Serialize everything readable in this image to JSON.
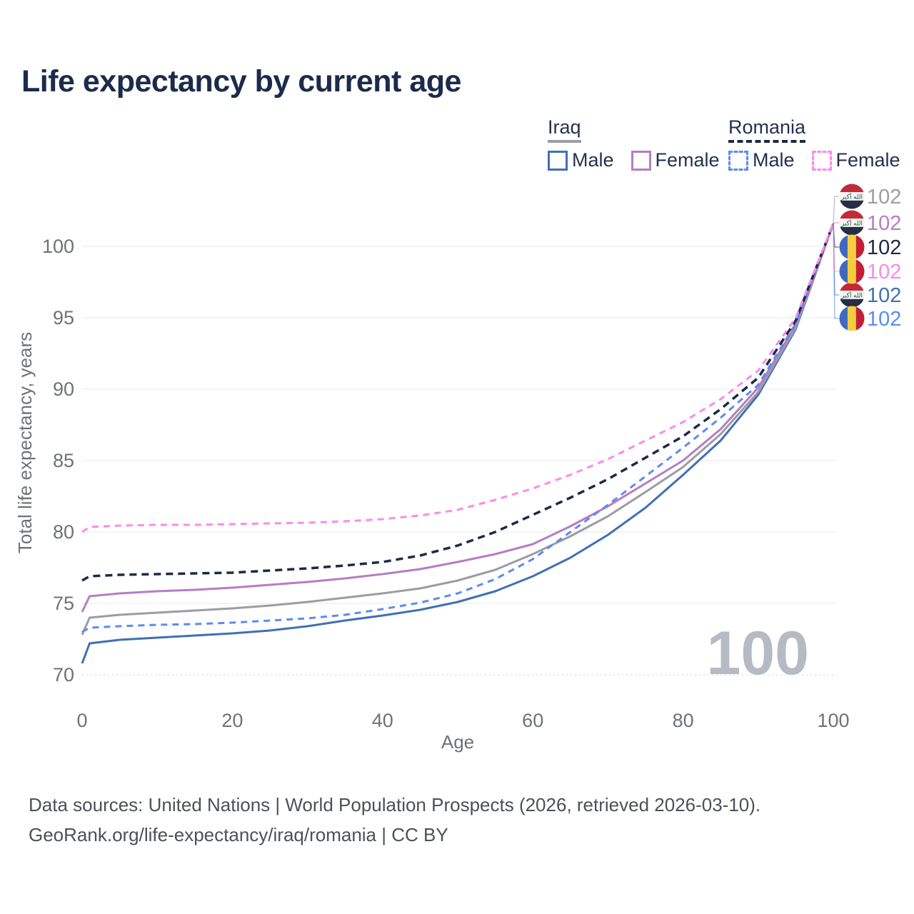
{
  "title": "Life expectancy by current age",
  "legend": {
    "iraq": {
      "label": "Iraq",
      "male": "Male",
      "female": "Female",
      "line_style": "solid",
      "line_color": "#9b9da2"
    },
    "romania": {
      "label": "Romania",
      "male": "Male",
      "female": "Female",
      "line_style": "dashed",
      "line_color": "#1d2a44"
    }
  },
  "footer": {
    "line1": "Data sources: United Nations | World Population Prospects (2026, retrieved 2026-03-10).",
    "line2": "GeoRank.org/life-expectancy/iraq/romania | CC BY"
  },
  "chart_data": {
    "type": "line",
    "title": "Life expectancy by current age",
    "xlabel": "Age",
    "ylabel": "Total life expectancy, years",
    "watermark": "100",
    "xlim": [
      0,
      100
    ],
    "ylim": [
      70,
      102
    ],
    "x_ticks": [
      0,
      20,
      40,
      60,
      80,
      100
    ],
    "y_ticks": [
      70,
      75,
      80,
      85,
      90,
      95,
      100
    ],
    "grid": "horizontal",
    "legend_position": "top-right",
    "flag_colors": {
      "iraq": {
        "bands": [
          "#c22a38",
          "#f4f4f4",
          "#252e44"
        ],
        "text": "الله أكبر",
        "text_color": "#1f5c3a"
      },
      "romania": {
        "bands": [
          "#3f69bd",
          "#f6cd3d",
          "#c41d36"
        ]
      }
    },
    "label_slot_y": [
      275,
      312,
      346,
      380,
      413,
      446
    ],
    "series": [
      {
        "key": "iraq_male",
        "name": "Iraq Male",
        "country": "iraq",
        "sex": "male",
        "style": "solid",
        "color": "#4170b4",
        "end_label": "102",
        "label_slot": 4,
        "points": [
          [
            0,
            70.8
          ],
          [
            1,
            72.2
          ],
          [
            5,
            72.45
          ],
          [
            10,
            72.6
          ],
          [
            15,
            72.75
          ],
          [
            20,
            72.9
          ],
          [
            25,
            73.1
          ],
          [
            30,
            73.4
          ],
          [
            35,
            73.8
          ],
          [
            40,
            74.15
          ],
          [
            45,
            74.55
          ],
          [
            50,
            75.1
          ],
          [
            55,
            75.85
          ],
          [
            60,
            76.9
          ],
          [
            65,
            78.2
          ],
          [
            70,
            79.8
          ],
          [
            75,
            81.7
          ],
          [
            80,
            84.0
          ],
          [
            85,
            86.4
          ],
          [
            90,
            89.6
          ],
          [
            95,
            94.2
          ],
          [
            100,
            101.6
          ]
        ]
      },
      {
        "key": "iraq_total",
        "name": "Iraq Total",
        "country": "iraq",
        "sex": "total",
        "style": "solid",
        "color": "#9b9da2",
        "end_label": "102",
        "label_slot": 0,
        "points": [
          [
            0,
            72.8
          ],
          [
            1,
            74.0
          ],
          [
            5,
            74.2
          ],
          [
            10,
            74.35
          ],
          [
            15,
            74.5
          ],
          [
            20,
            74.65
          ],
          [
            25,
            74.85
          ],
          [
            30,
            75.1
          ],
          [
            35,
            75.4
          ],
          [
            40,
            75.7
          ],
          [
            45,
            76.05
          ],
          [
            50,
            76.6
          ],
          [
            55,
            77.35
          ],
          [
            60,
            78.45
          ],
          [
            65,
            79.7
          ],
          [
            70,
            81.1
          ],
          [
            75,
            82.8
          ],
          [
            80,
            84.55
          ],
          [
            85,
            86.85
          ],
          [
            90,
            89.8
          ],
          [
            95,
            94.3
          ],
          [
            100,
            101.6
          ]
        ]
      },
      {
        "key": "iraq_female",
        "name": "Iraq Female",
        "country": "iraq",
        "sex": "female",
        "style": "solid",
        "color": "#b77cc3",
        "end_label": "102",
        "label_slot": 1,
        "points": [
          [
            0,
            74.4
          ],
          [
            1,
            75.5
          ],
          [
            5,
            75.7
          ],
          [
            10,
            75.85
          ],
          [
            15,
            75.95
          ],
          [
            20,
            76.1
          ],
          [
            25,
            76.3
          ],
          [
            30,
            76.5
          ],
          [
            35,
            76.75
          ],
          [
            40,
            77.05
          ],
          [
            45,
            77.4
          ],
          [
            50,
            77.9
          ],
          [
            55,
            78.45
          ],
          [
            60,
            79.15
          ],
          [
            65,
            80.4
          ],
          [
            70,
            81.8
          ],
          [
            75,
            83.4
          ],
          [
            80,
            85.0
          ],
          [
            85,
            87.2
          ],
          [
            90,
            90.1
          ],
          [
            95,
            94.5
          ],
          [
            100,
            101.6
          ]
        ]
      },
      {
        "key": "romania_male",
        "name": "Romania Male",
        "country": "romania",
        "sex": "male",
        "style": "dashed",
        "color": "#5a8cf0",
        "end_label": "102",
        "label_slot": 5,
        "points": [
          [
            0,
            73.0
          ],
          [
            1,
            73.3
          ],
          [
            5,
            73.4
          ],
          [
            10,
            73.5
          ],
          [
            15,
            73.55
          ],
          [
            20,
            73.65
          ],
          [
            25,
            73.8
          ],
          [
            30,
            73.95
          ],
          [
            35,
            74.2
          ],
          [
            40,
            74.6
          ],
          [
            45,
            75.05
          ],
          [
            50,
            75.7
          ],
          [
            55,
            76.7
          ],
          [
            60,
            78.1
          ],
          [
            65,
            80.0
          ],
          [
            70,
            81.9
          ],
          [
            75,
            83.9
          ],
          [
            80,
            85.9
          ],
          [
            85,
            88.0
          ],
          [
            90,
            90.3
          ],
          [
            95,
            94.6
          ],
          [
            100,
            101.6
          ]
        ]
      },
      {
        "key": "romania_total",
        "name": "Romania Total",
        "country": "romania",
        "sex": "total",
        "style": "dashed",
        "color": "#1d2a44",
        "end_label": "102",
        "label_slot": 2,
        "points": [
          [
            0,
            76.6
          ],
          [
            1,
            76.9
          ],
          [
            5,
            77.0
          ],
          [
            10,
            77.05
          ],
          [
            15,
            77.1
          ],
          [
            20,
            77.15
          ],
          [
            25,
            77.3
          ],
          [
            30,
            77.45
          ],
          [
            35,
            77.65
          ],
          [
            40,
            77.9
          ],
          [
            45,
            78.35
          ],
          [
            50,
            79.05
          ],
          [
            55,
            80.0
          ],
          [
            60,
            81.2
          ],
          [
            65,
            82.4
          ],
          [
            70,
            83.7
          ],
          [
            75,
            85.2
          ],
          [
            80,
            86.7
          ],
          [
            85,
            88.6
          ],
          [
            90,
            90.8
          ],
          [
            95,
            94.8
          ],
          [
            100,
            101.6
          ]
        ]
      },
      {
        "key": "romania_female",
        "name": "Romania Female",
        "country": "romania",
        "sex": "female",
        "style": "dashed",
        "color": "#fb8ae9",
        "end_label": "102",
        "label_slot": 3,
        "points": [
          [
            0,
            80.0
          ],
          [
            1,
            80.35
          ],
          [
            5,
            80.45
          ],
          [
            10,
            80.5
          ],
          [
            15,
            80.5
          ],
          [
            20,
            80.55
          ],
          [
            25,
            80.6
          ],
          [
            30,
            80.65
          ],
          [
            35,
            80.75
          ],
          [
            40,
            80.9
          ],
          [
            45,
            81.15
          ],
          [
            50,
            81.55
          ],
          [
            55,
            82.25
          ],
          [
            60,
            83.05
          ],
          [
            65,
            84.0
          ],
          [
            70,
            85.1
          ],
          [
            75,
            86.4
          ],
          [
            80,
            87.7
          ],
          [
            85,
            89.3
          ],
          [
            90,
            91.3
          ],
          [
            95,
            95.0
          ],
          [
            100,
            101.6
          ]
        ]
      }
    ]
  }
}
